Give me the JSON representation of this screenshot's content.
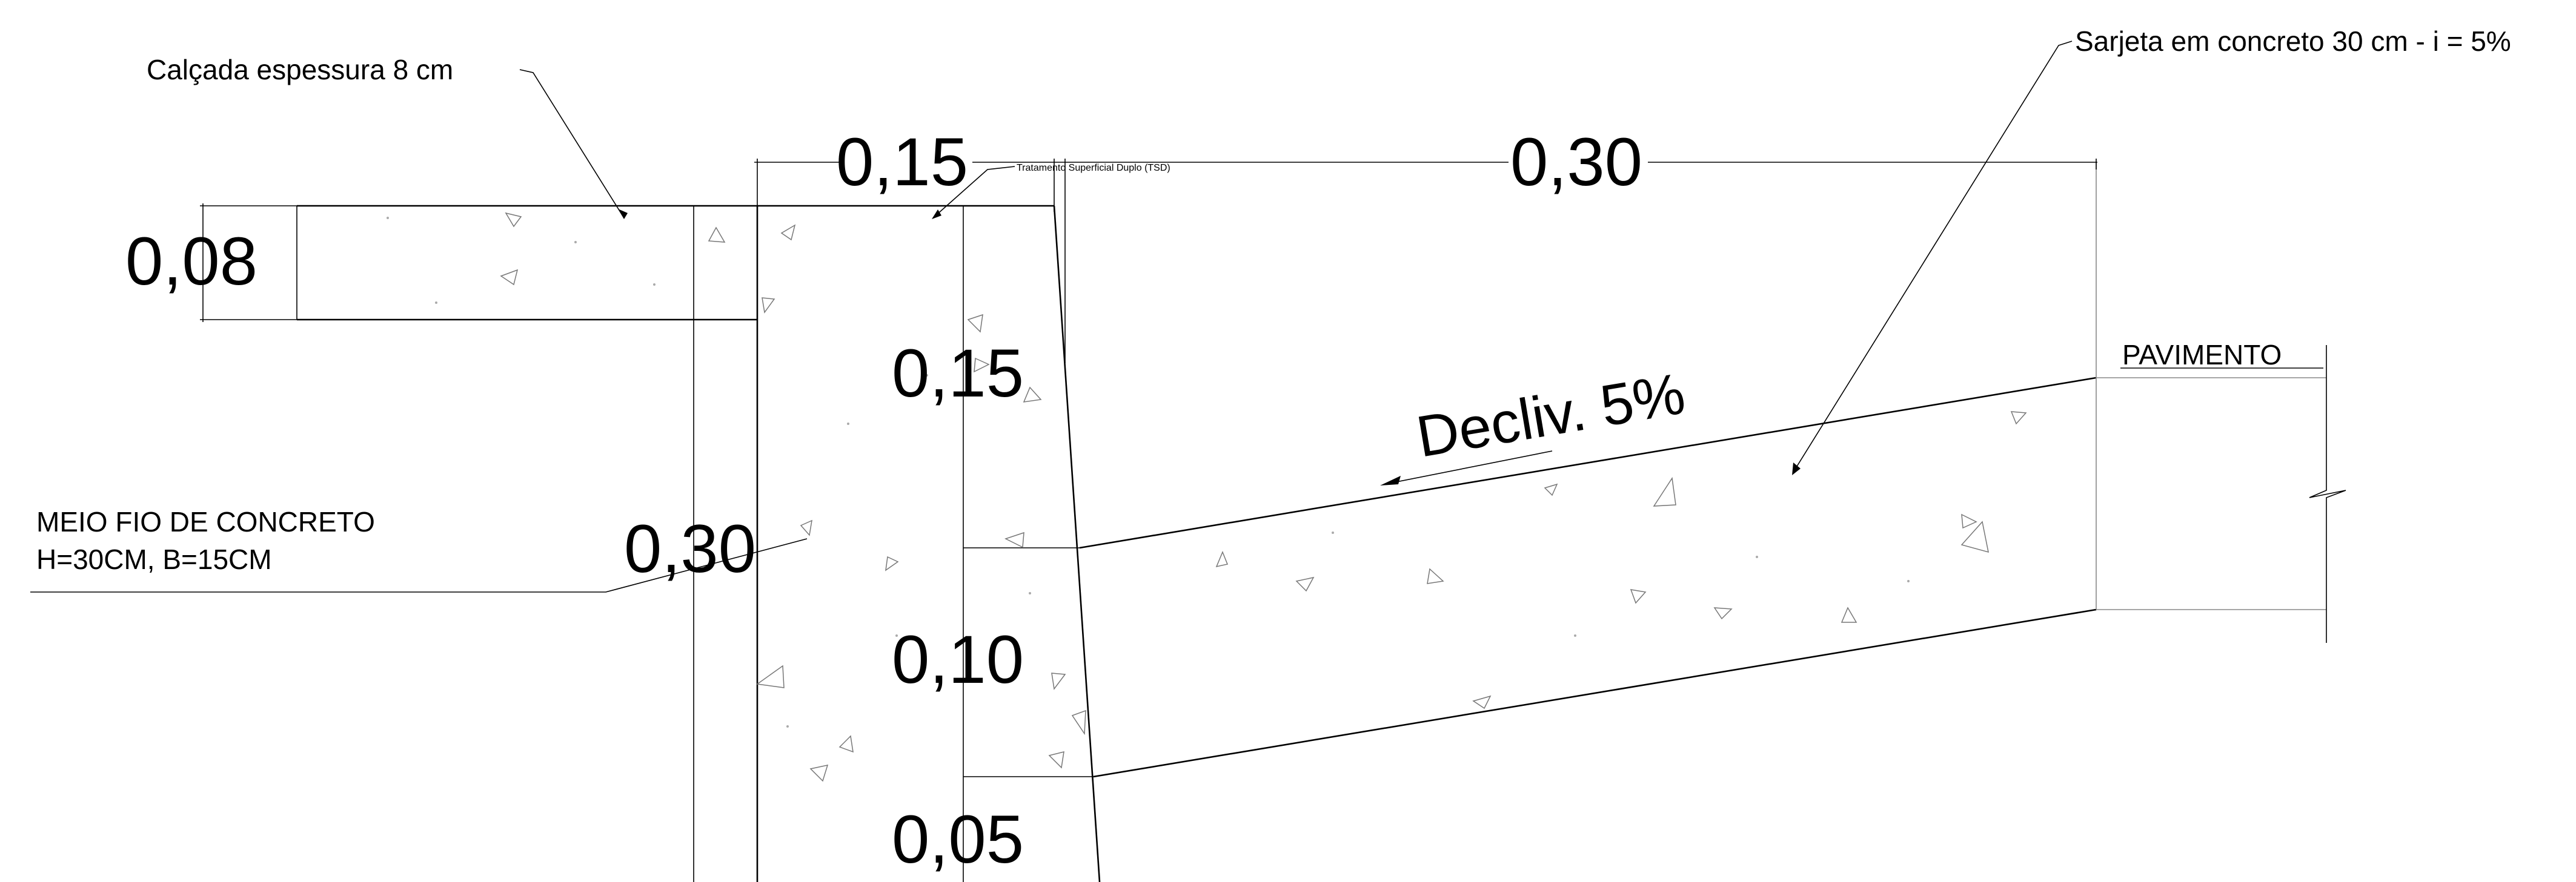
{
  "labels": {
    "sidewalk": "Calçada espessura 8 cm",
    "gutter": "Sarjeta em concreto 30 cm - i = 5%",
    "tsd": "Tratamento Superficial Duplo (TSD)",
    "pavement": "PAVIMENTO",
    "curb_line1": "MEIO FIO DE CONCRETO",
    "curb_line2": "H=30CM, B=15CM",
    "slope": "Decliv. 5%"
  },
  "dimensions": {
    "curb_width": "0,15",
    "gutter_width": "0,30",
    "sidewalk_thickness": "0,08",
    "curb_upper": "0,15",
    "curb_height": "0,30",
    "curb_mid": "0,10",
    "curb_bottom": "0,05"
  },
  "colors": {
    "line": "#000000",
    "hatch": "#777777",
    "background": "#ffffff"
  }
}
